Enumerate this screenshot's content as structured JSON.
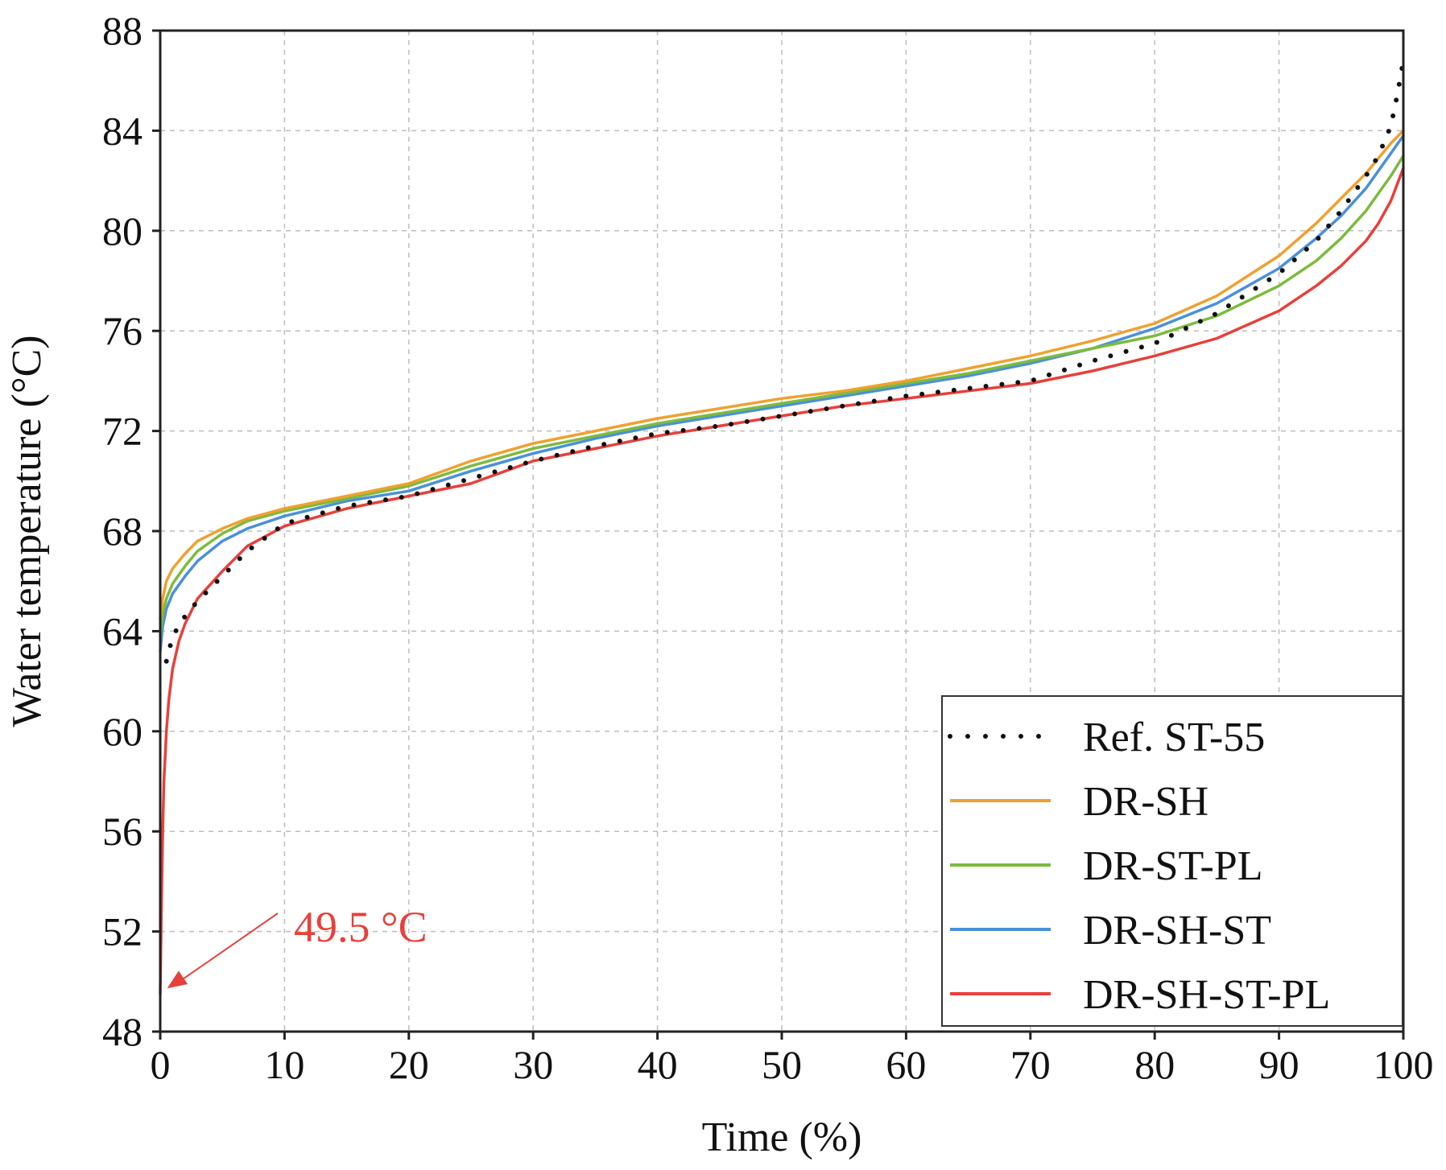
{
  "chart_data": {
    "type": "line",
    "title": "",
    "xlabel": "Time (%)",
    "ylabel": "Water temperature (°C)",
    "xlim": [
      0,
      100
    ],
    "ylim": [
      48,
      88
    ],
    "xticks": [
      0,
      10,
      20,
      30,
      40,
      50,
      60,
      70,
      80,
      90,
      100
    ],
    "yticks": [
      48,
      52,
      56,
      60,
      64,
      68,
      72,
      76,
      80,
      84,
      88
    ],
    "grid": true,
    "legend_position": "bottom-right",
    "series": [
      {
        "name": "Ref. ST-55",
        "color": "#111111",
        "style": "dotted",
        "x": [
          0.5,
          1,
          2,
          3,
          5,
          7,
          10,
          15,
          20,
          25,
          30,
          35,
          40,
          45,
          50,
          55,
          60,
          65,
          70,
          75,
          80,
          85,
          90,
          93,
          95,
          97,
          98,
          99,
          99.5,
          100
        ],
        "y": [
          62.8,
          63.8,
          64.6,
          65.2,
          66.2,
          67.2,
          68.3,
          69.0,
          69.4,
          70.1,
          70.8,
          71.4,
          71.9,
          72.2,
          72.6,
          73.0,
          73.4,
          73.7,
          74.0,
          74.8,
          75.5,
          76.7,
          78.3,
          79.6,
          80.8,
          82.2,
          83.0,
          84.2,
          85.4,
          86.8
        ]
      },
      {
        "name": "DR-SH",
        "color": "#f0a030",
        "style": "solid",
        "x": [
          0,
          0.2,
          0.5,
          1,
          2,
          3,
          5,
          7,
          10,
          15,
          20,
          25,
          30,
          35,
          40,
          45,
          50,
          55,
          60,
          65,
          70,
          75,
          80,
          85,
          90,
          93,
          95,
          97,
          98,
          99,
          100
        ],
        "y": [
          64.5,
          65.3,
          66.0,
          66.5,
          67.1,
          67.6,
          68.1,
          68.5,
          68.9,
          69.4,
          69.9,
          70.8,
          71.5,
          72.0,
          72.5,
          72.9,
          73.3,
          73.6,
          74.0,
          74.5,
          75.0,
          75.6,
          76.3,
          77.4,
          79.0,
          80.3,
          81.3,
          82.3,
          82.9,
          83.5,
          84.0
        ]
      },
      {
        "name": "DR-ST-PL",
        "color": "#7cbb3c",
        "style": "solid",
        "x": [
          0,
          0.2,
          0.5,
          1,
          2,
          3,
          5,
          7,
          10,
          15,
          20,
          25,
          30,
          35,
          40,
          45,
          50,
          55,
          60,
          65,
          70,
          75,
          80,
          85,
          90,
          93,
          95,
          97,
          98,
          99,
          100
        ],
        "y": [
          63.8,
          64.7,
          65.3,
          65.9,
          66.6,
          67.2,
          67.9,
          68.4,
          68.8,
          69.3,
          69.8,
          70.6,
          71.3,
          71.8,
          72.3,
          72.7,
          73.1,
          73.5,
          73.9,
          74.3,
          74.8,
          75.3,
          75.8,
          76.6,
          77.8,
          78.8,
          79.7,
          80.8,
          81.5,
          82.2,
          83.0
        ]
      },
      {
        "name": "DR-SH-ST",
        "color": "#4a90d9",
        "style": "solid",
        "x": [
          0,
          0.2,
          0.5,
          1,
          2,
          3,
          5,
          7,
          10,
          15,
          20,
          25,
          30,
          35,
          40,
          45,
          50,
          55,
          60,
          65,
          70,
          75,
          80,
          85,
          90,
          93,
          95,
          97,
          98,
          99,
          100
        ],
        "y": [
          63.2,
          64.2,
          64.9,
          65.5,
          66.2,
          66.8,
          67.6,
          68.1,
          68.6,
          69.2,
          69.6,
          70.4,
          71.1,
          71.7,
          72.2,
          72.6,
          73.0,
          73.4,
          73.8,
          74.2,
          74.7,
          75.3,
          76.1,
          77.1,
          78.5,
          79.7,
          80.6,
          81.7,
          82.4,
          83.1,
          83.8
        ]
      },
      {
        "name": "DR-SH-ST-PL",
        "color": "#e8403a",
        "style": "solid",
        "x": [
          0,
          0.1,
          0.2,
          0.3,
          0.5,
          0.7,
          1,
          1.5,
          2,
          3,
          5,
          7,
          10,
          15,
          20,
          25,
          30,
          35,
          40,
          45,
          50,
          55,
          60,
          65,
          70,
          75,
          80,
          85,
          90,
          93,
          95,
          97,
          98,
          99,
          100
        ],
        "y": [
          49.5,
          53.0,
          56.0,
          58.0,
          60.0,
          61.3,
          62.5,
          63.6,
          64.3,
          65.3,
          66.4,
          67.4,
          68.2,
          68.9,
          69.4,
          69.9,
          70.8,
          71.3,
          71.8,
          72.2,
          72.6,
          73.0,
          73.3,
          73.6,
          73.9,
          74.4,
          75.0,
          75.7,
          76.8,
          77.8,
          78.6,
          79.6,
          80.3,
          81.2,
          82.5
        ]
      }
    ],
    "annotations": [
      {
        "text": "49.5 °C",
        "x": 0.3,
        "y": 49.6,
        "color": "#e8403a"
      }
    ]
  }
}
